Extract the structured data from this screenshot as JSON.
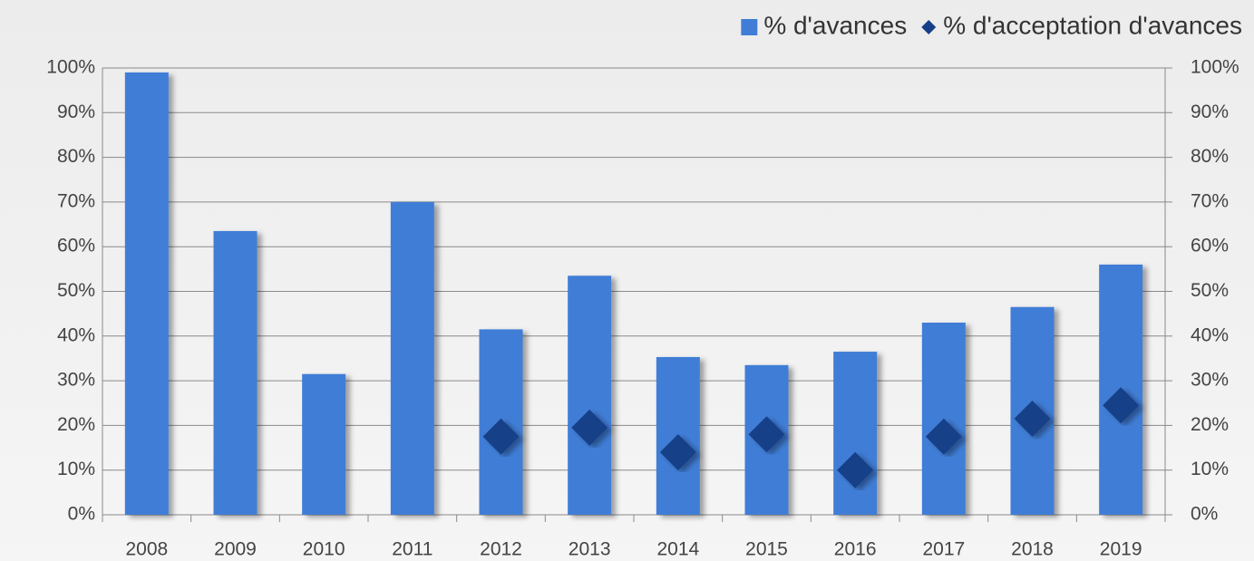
{
  "chart_data": {
    "type": "bar",
    "categories": [
      "2008",
      "2009",
      "2010",
      "2011",
      "2012",
      "2013",
      "2014",
      "2015",
      "2016",
      "2017",
      "2018",
      "2019"
    ],
    "series": [
      {
        "name": "% d'avances",
        "type": "bar",
        "color": "#3f7dd6",
        "values": [
          99,
          63.5,
          31.5,
          70,
          41.5,
          53.5,
          35.3,
          33.5,
          36.5,
          43,
          46.5,
          56
        ]
      },
      {
        "name": "% d'acceptation d'avances",
        "type": "scatter",
        "marker": "diamond",
        "axis": "y2",
        "color": "#163f88",
        "values": [
          null,
          null,
          null,
          null,
          17.5,
          19.5,
          14,
          18,
          10,
          17.5,
          21.5,
          24.5
        ]
      }
    ],
    "ylim": [
      0,
      100
    ],
    "yticks": [
      {
        "value": 0,
        "label": "0%"
      },
      {
        "value": 10,
        "label": "10%"
      },
      {
        "value": 20,
        "label": "20%"
      },
      {
        "value": 30,
        "label": "30%"
      },
      {
        "value": 40,
        "label": "40%"
      },
      {
        "value": 50,
        "label": "50%"
      },
      {
        "value": 60,
        "label": "60%"
      },
      {
        "value": 70,
        "label": "70%"
      },
      {
        "value": 80,
        "label": "80%"
      },
      {
        "value": 90,
        "label": "90%"
      },
      {
        "value": 100,
        "label": "100%"
      }
    ],
    "y2lim": [
      0,
      100
    ],
    "y2ticks": [
      {
        "value": 0,
        "label": "0%"
      },
      {
        "value": 10,
        "label": "10%"
      },
      {
        "value": 20,
        "label": "20%"
      },
      {
        "value": 30,
        "label": "30%"
      },
      {
        "value": 40,
        "label": "40%"
      },
      {
        "value": 50,
        "label": "50%"
      },
      {
        "value": 60,
        "label": "60%"
      },
      {
        "value": 70,
        "label": "70%"
      },
      {
        "value": 80,
        "label": "80%"
      },
      {
        "value": 90,
        "label": "90%"
      },
      {
        "value": 100,
        "label": "100%"
      }
    ],
    "grid": true,
    "legend": "top-right"
  }
}
